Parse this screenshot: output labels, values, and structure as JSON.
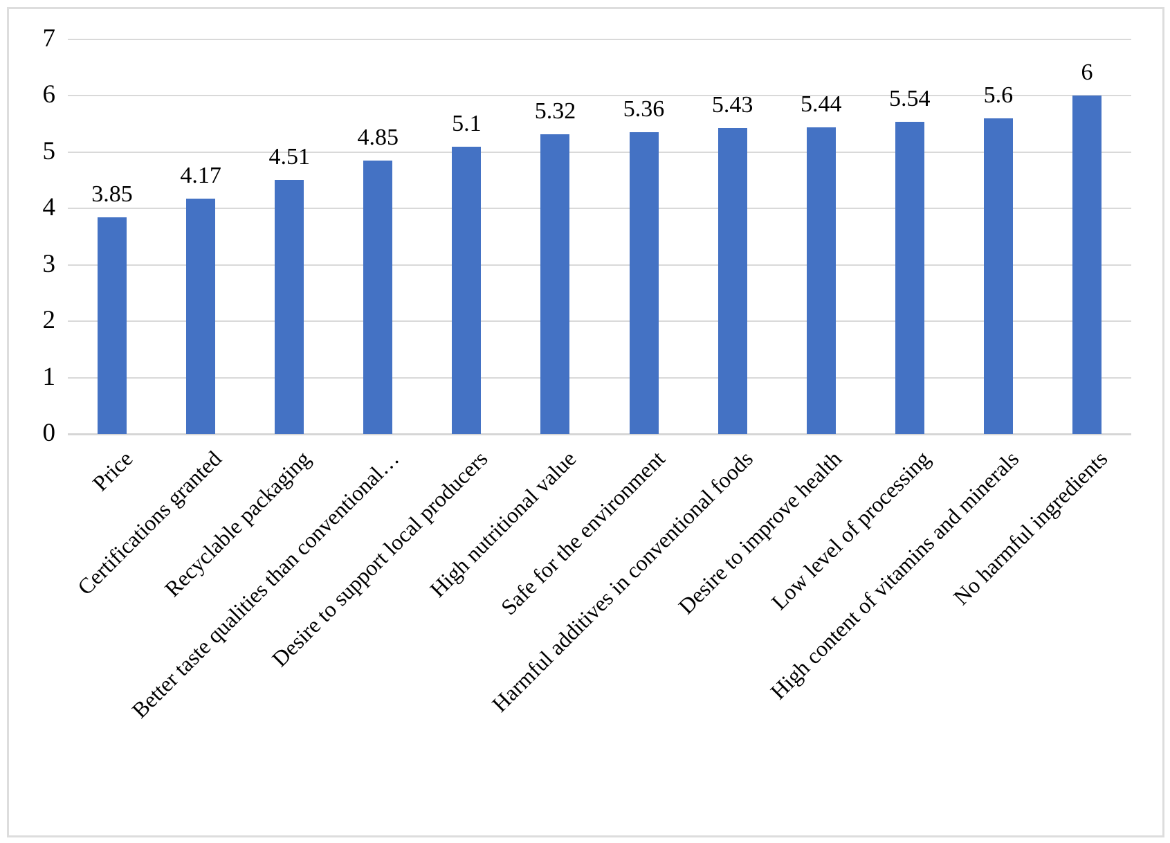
{
  "figure": {
    "background_color": "#FFFFFF",
    "border_color": "#DDDDDD"
  },
  "chart_data": {
    "type": "bar",
    "title": "",
    "xlabel": "",
    "ylabel": "",
    "categories": [
      "Price",
      "Certifications granted",
      "Recyclable packaging",
      "Better taste qualities than conventional…",
      "Desire to support local producers",
      "High nutritional value",
      "Safe for the environment",
      "Harmful additives in conventional foods",
      "Desire to improve health",
      "Low level of processing",
      "High content of vitamins and minerals",
      "No harmful ingredients"
    ],
    "values": [
      3.85,
      4.17,
      4.51,
      4.85,
      5.1,
      5.32,
      5.36,
      5.43,
      5.44,
      5.54,
      5.6,
      6
    ],
    "data_labels": [
      "3.85",
      "4.17",
      "4.51",
      "4.85",
      "5.1",
      "5.32",
      "5.36",
      "5.43",
      "5.44",
      "5.54",
      "5.6",
      "6"
    ],
    "ylim": [
      0,
      7
    ],
    "yticks": [
      0,
      1,
      2,
      3,
      4,
      5,
      6,
      7
    ],
    "grid": true,
    "legend_position": "none",
    "bar_color": "#4472C4",
    "gridline_color": "#D9D9D9",
    "axis_line_color": "#D6D6D6",
    "text_color": "#000000",
    "x_label_rotation_deg": 45
  }
}
